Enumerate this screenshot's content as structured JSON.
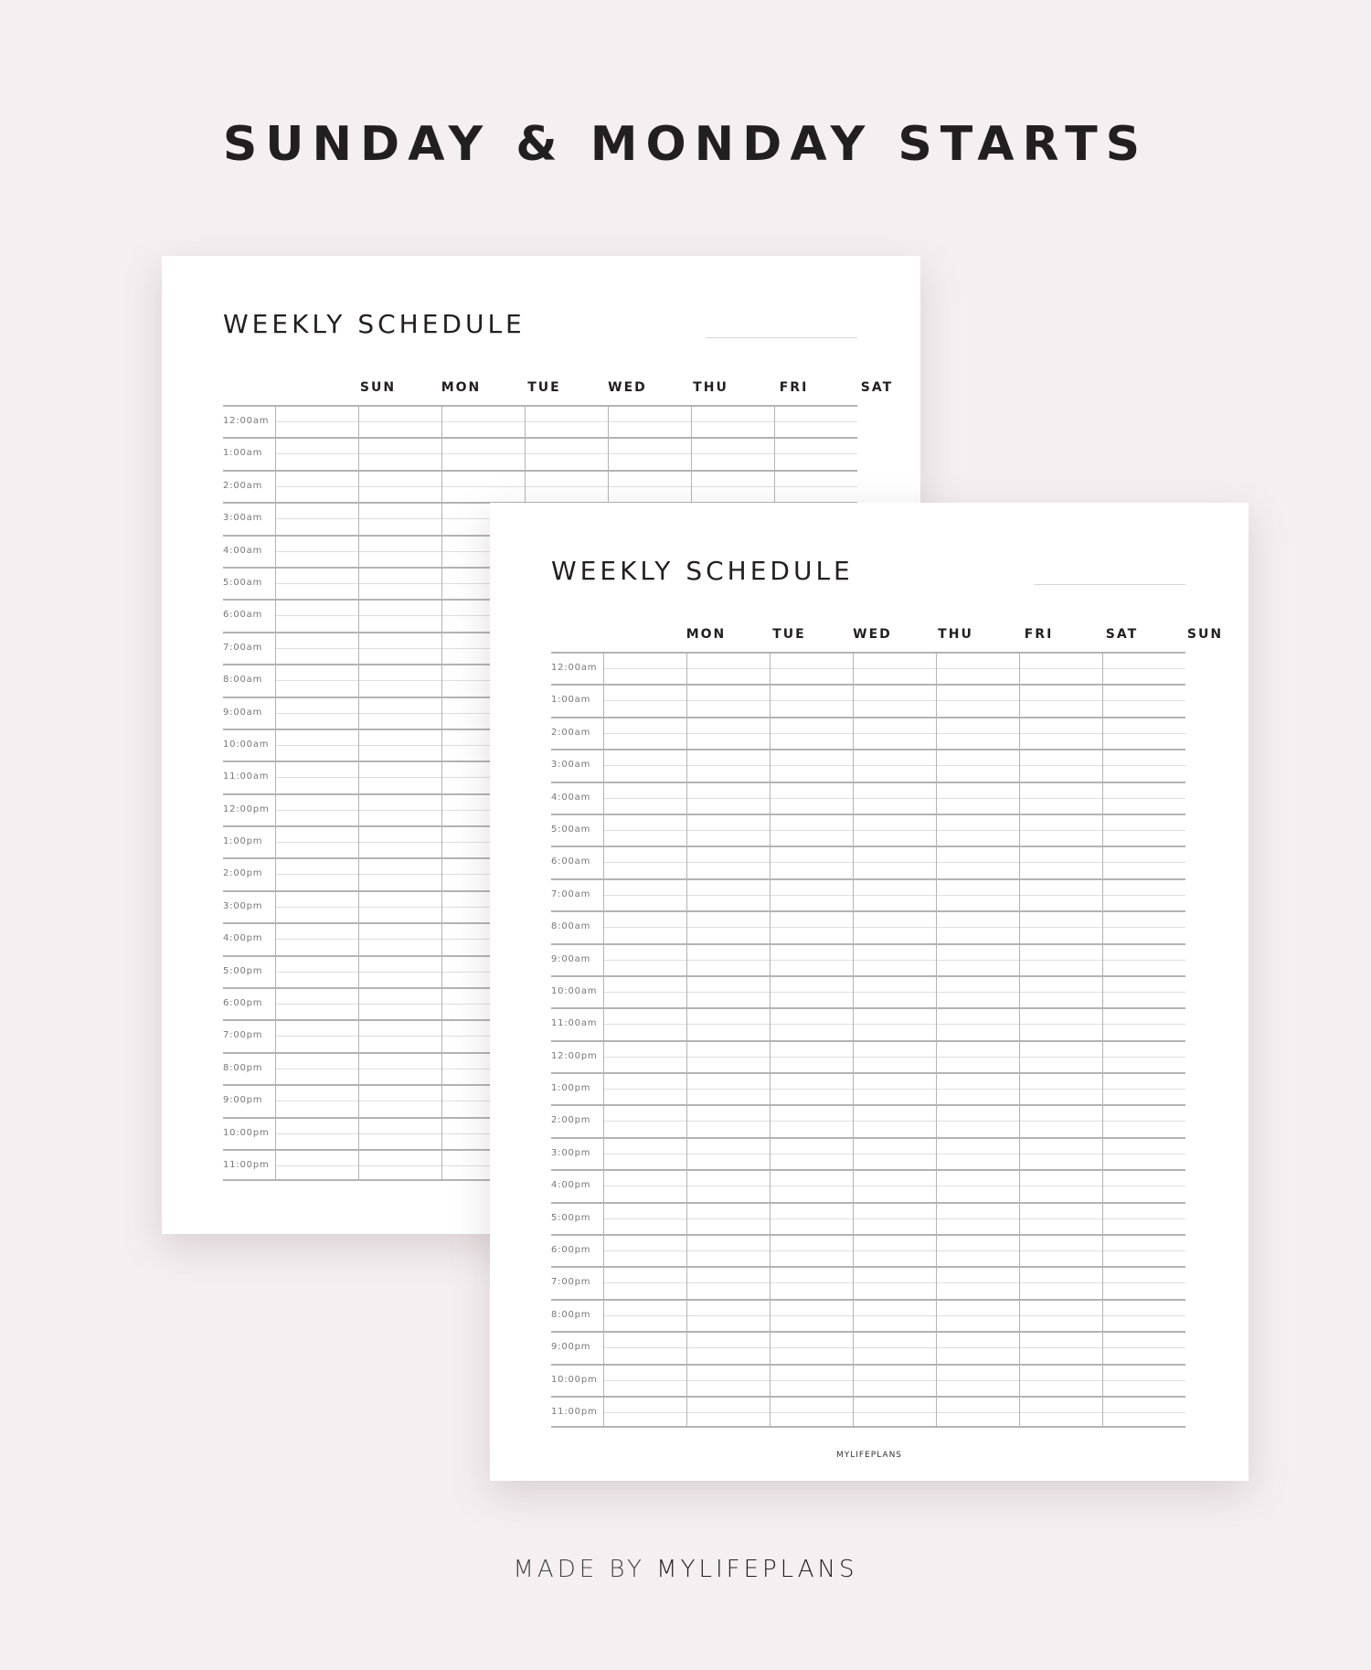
{
  "heading": "SUNDAY & MONDAY STARTS",
  "credit": {
    "prefix": "MADE BY",
    "brand": "MYLIFEPLANS"
  },
  "times": [
    "12:00am",
    "1:00am",
    "2:00am",
    "3:00am",
    "4:00am",
    "5:00am",
    "6:00am",
    "7:00am",
    "8:00am",
    "9:00am",
    "10:00am",
    "11:00am",
    "12:00pm",
    "1:00pm",
    "2:00pm",
    "3:00pm",
    "4:00pm",
    "5:00pm",
    "6:00pm",
    "7:00pm",
    "8:00pm",
    "9:00pm",
    "10:00pm",
    "11:00pm"
  ],
  "pages": {
    "back": {
      "title": "WEEKLY SCHEDULE",
      "days": [
        "SUN",
        "MON",
        "TUE",
        "WED",
        "THU",
        "FRI",
        "SAT"
      ]
    },
    "front": {
      "title": "WEEKLY SCHEDULE",
      "days": [
        "MON",
        "TUE",
        "WED",
        "THU",
        "FRI",
        "SAT",
        "SUN"
      ],
      "footer": "MYLIFEPLANS"
    }
  },
  "colors": {
    "background": "#f5eff1",
    "text": "#231f20",
    "grid": "#b3b3b3"
  }
}
